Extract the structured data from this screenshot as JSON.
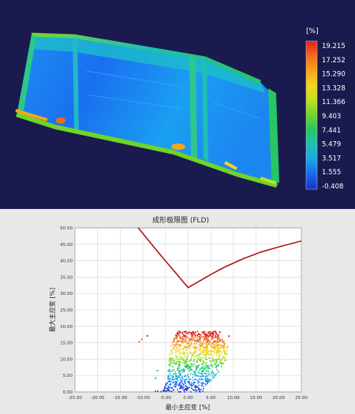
{
  "panel_3d": {
    "unit_label": "[%]",
    "colorbar_ticks": [
      "19.215",
      "17.252",
      "15.290",
      "13.328",
      "11.366",
      "9.403",
      "7.441",
      "5.479",
      "3.517",
      "1.555",
      "-0.408"
    ],
    "colorbar_colors": [
      "#e0221b",
      "#f36a18",
      "#f7a51a",
      "#f2d51d",
      "#bde21f",
      "#6fd52a",
      "#25c663",
      "#1fbfb2",
      "#19a7ea",
      "#1868f0",
      "#1431c8"
    ]
  },
  "chart_data": {
    "type": "scatter",
    "title": "成形极限图 (FLD)",
    "xlabel": "最小主应变 [%]",
    "ylabel": "最大主应变 [%]",
    "xlim": [
      -25,
      25
    ],
    "ylim": [
      0,
      50
    ],
    "x_ticks": [
      "-25.00",
      "-20.00",
      "-15.00",
      "-10.00",
      "-5.00",
      "0.00",
      "5.00",
      "10.00",
      "15.00",
      "20.00",
      "25.00"
    ],
    "y_ticks": [
      "0.00",
      "5.00",
      "10.00",
      "15.00",
      "20.00",
      "25.00",
      "30.00",
      "35.00",
      "40.00",
      "45.00",
      "50.00"
    ],
    "grid": true,
    "forming_limit_curve": {
      "color": "#b01515",
      "x": [
        -11,
        -9,
        -7,
        -5,
        -3,
        -1,
        0,
        2,
        5,
        8,
        12,
        16,
        20,
        25
      ],
      "y": [
        50,
        46.6,
        43.2,
        39.9,
        36.7,
        33.4,
        31.8,
        33.4,
        35.8,
        38.0,
        40.5,
        42.6,
        44.2,
        46.0
      ]
    },
    "strain_points": {
      "color_scale": [
        "#1431c8",
        "#1868f0",
        "#19a7ea",
        "#1fbfb2",
        "#25c663",
        "#6fd52a",
        "#bde21f",
        "#f2d51d",
        "#f7a51a",
        "#f36a18",
        "#e0221b"
      ],
      "envelope": {
        "y_max": 18.5,
        "left_edge": [
          [
            0,
            -7.5
          ],
          [
            2,
            -5.0
          ],
          [
            6,
            -4.5
          ],
          [
            10,
            -4.2
          ],
          [
            14,
            -3.8
          ],
          [
            18.5,
            -2.5
          ]
        ],
        "right_edge": [
          [
            0,
            3.5
          ],
          [
            2,
            4.5
          ],
          [
            6,
            7.0
          ],
          [
            10,
            8.5
          ],
          [
            14,
            9.0
          ],
          [
            18.5,
            6.0
          ]
        ]
      },
      "outliers": [
        {
          "x": -10.2,
          "y": 16.0
        },
        {
          "x": -10.8,
          "y": 15.3
        },
        {
          "x": -9.0,
          "y": 17.1
        },
        {
          "x": 9.0,
          "y": 17.0
        },
        {
          "x": 7.0,
          "y": 18.2
        },
        {
          "x": 8.5,
          "y": 11.5
        },
        {
          "x": -6.8,
          "y": 6.5
        },
        {
          "x": -7.2,
          "y": 4.2
        }
      ]
    }
  }
}
